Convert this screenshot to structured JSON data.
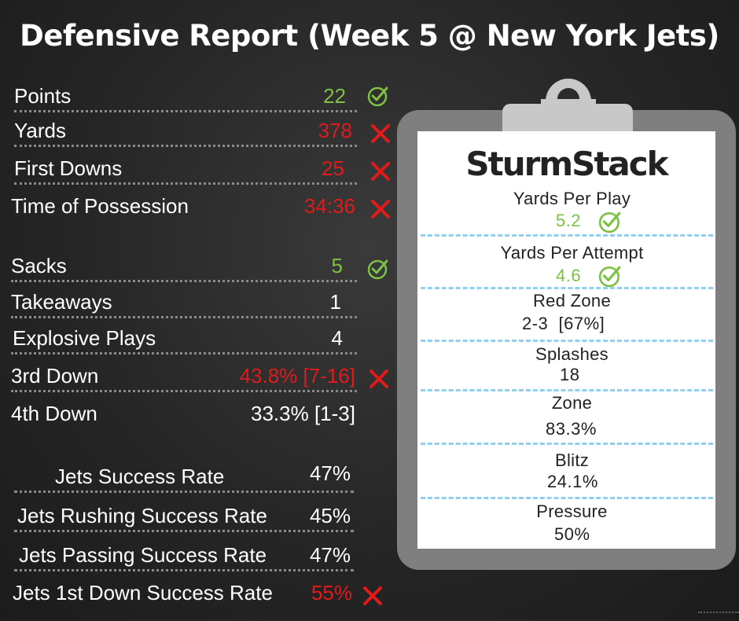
{
  "title": "Defensive Report (Week 5 @ New York Jets)",
  "colors": {
    "good": "#7dc242",
    "bad": "#e11a1a",
    "neutral": "#ffffff",
    "divider": "#8fcff0"
  },
  "top_stats": [
    {
      "label": "Points",
      "value": "22",
      "status": "good",
      "icon": "check-circle-icon"
    },
    {
      "label": "Yards",
      "value": "378",
      "status": "bad",
      "icon": "x-icon"
    },
    {
      "label": "First Downs",
      "value": "25",
      "status": "bad",
      "icon": "x-icon"
    },
    {
      "label": "Time of Possession",
      "value": "34:36",
      "status": "bad",
      "icon": "x-icon"
    }
  ],
  "mid_stats": [
    {
      "label": "Sacks",
      "value": "5",
      "status": "good",
      "icon": "check-circle-icon"
    },
    {
      "label": "Takeaways",
      "value": "1",
      "status": "neutral"
    },
    {
      "label": "Explosive Plays",
      "value": "4",
      "status": "neutral"
    },
    {
      "label": "3rd Down",
      "value": "43.8% [7-16]",
      "status": "bad",
      "icon": "x-icon"
    },
    {
      "label": "4th Down",
      "value": "33.3% [1-3]",
      "status": "neutral"
    }
  ],
  "success_stats": [
    {
      "label": "Jets Success Rate",
      "value": "47%",
      "status": "neutral"
    },
    {
      "label": "Jets Rushing Success Rate",
      "value": "45%",
      "status": "neutral"
    },
    {
      "label": "Jets Passing Success Rate",
      "value": "47%",
      "status": "neutral"
    },
    {
      "label": "Jets 1st Down Success Rate",
      "value": "55%",
      "status": "bad",
      "icon": "x-icon"
    }
  ],
  "clipboard": {
    "logo": "SturmStack",
    "stats": [
      {
        "label": "Yards Per Play",
        "value": "5.2",
        "status": "good",
        "icon": "check-circle-icon"
      },
      {
        "label": "Yards Per Attempt",
        "value": "4.6",
        "status": "good",
        "icon": "check-circle-icon"
      },
      {
        "label": "Red Zone",
        "value": "2-3  [67%]",
        "status": "neutral"
      },
      {
        "label": "Splashes",
        "value": "18",
        "status": "neutral"
      },
      {
        "label": "Zone",
        "value": "83.3%",
        "status": "neutral"
      },
      {
        "label": "Blitz",
        "value": "24.1%",
        "status": "neutral"
      },
      {
        "label": "Pressure",
        "value": "50%",
        "status": "neutral"
      }
    ]
  }
}
